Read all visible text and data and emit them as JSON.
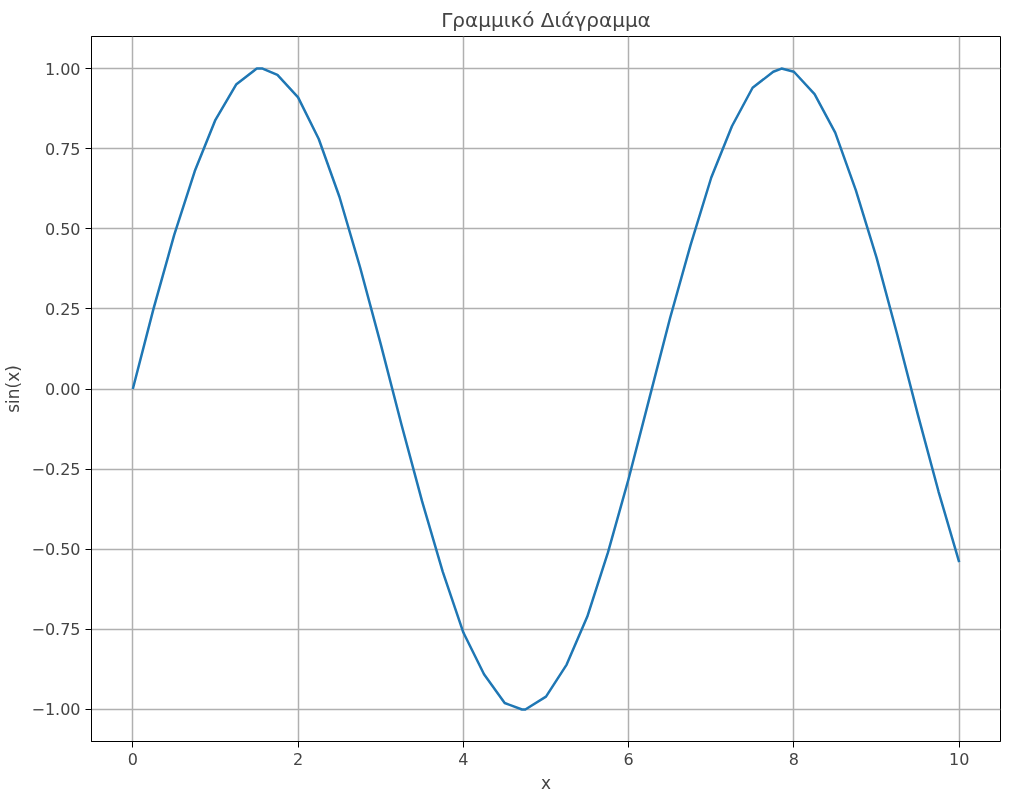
{
  "chart_data": {
    "type": "line",
    "title": "Γραμμικό Διάγραμμα",
    "xlabel": "x",
    "ylabel": "sin(x)",
    "xlim": [
      -0.5,
      10.5
    ],
    "ylim": [
      -1.1,
      1.1
    ],
    "xticks": [
      0,
      2,
      4,
      6,
      8,
      10
    ],
    "yticks": [
      {
        "value": -1,
        "label": "−1.00"
      },
      {
        "value": -0.75,
        "label": "−0.75"
      },
      {
        "value": -0.5,
        "label": "−0.50"
      },
      {
        "value": -0.25,
        "label": "−0.25"
      },
      {
        "value": 0,
        "label": "0.00"
      },
      {
        "value": 0.25,
        "label": "0.25"
      },
      {
        "value": 0.5,
        "label": "0.50"
      },
      {
        "value": 0.75,
        "label": "0.75"
      },
      {
        "value": 1,
        "label": "1.00"
      }
    ],
    "grid": true,
    "line_style": "solid",
    "series": [
      {
        "color": "#1f77b4",
        "x": [
          0,
          0.25,
          0.5,
          0.75,
          1,
          1.25,
          1.5,
          1.57,
          1.75,
          2,
          2.25,
          2.5,
          2.75,
          3,
          3.25,
          3.5,
          3.75,
          4,
          4.25,
          4.5,
          4.71,
          4.75,
          5,
          5.25,
          5.5,
          5.75,
          6,
          6.25,
          6.5,
          6.75,
          7,
          7.25,
          7.5,
          7.75,
          7.85,
          8,
          8.25,
          8.5,
          8.75,
          9,
          9.25,
          9.5,
          9.75,
          10
        ],
        "values": [
          0,
          0.25,
          0.48,
          0.68,
          0.84,
          0.95,
          1.0,
          1.0,
          0.98,
          0.91,
          0.78,
          0.6,
          0.38,
          0.14,
          -0.11,
          -0.35,
          -0.57,
          -0.76,
          -0.89,
          -0.98,
          -1.0,
          -1.0,
          -0.96,
          -0.86,
          -0.71,
          -0.51,
          -0.28,
          -0.03,
          0.22,
          0.45,
          0.66,
          0.82,
          0.94,
          0.99,
          1.0,
          0.99,
          0.92,
          0.8,
          0.62,
          0.41,
          0.17,
          -0.08,
          -0.32,
          -0.54
        ]
      }
    ]
  }
}
